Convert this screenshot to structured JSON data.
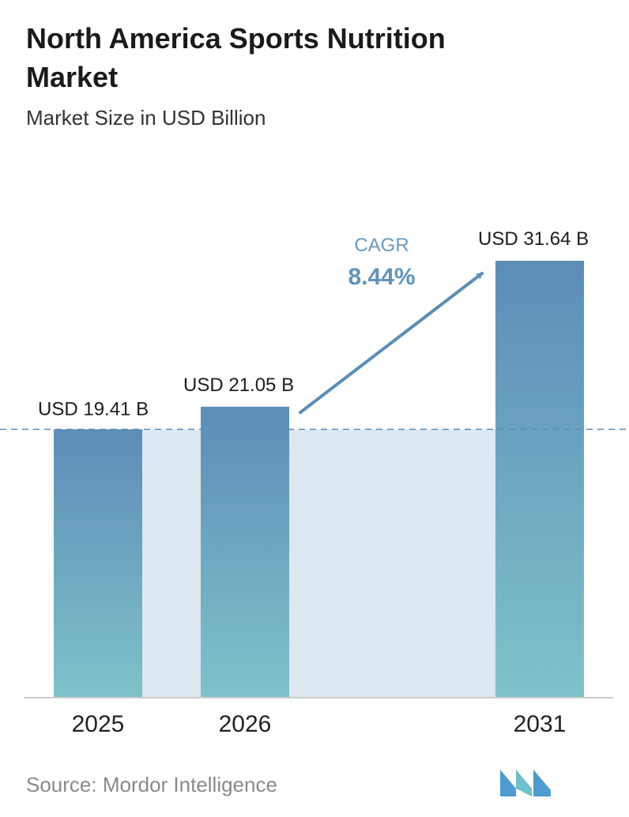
{
  "title": "North America Sports Nutrition Market",
  "subtitle": "Market Size in USD Billion",
  "source": "Source:  Mordor Intelligence",
  "colors": {
    "bar_top": "#5b8db8",
    "bar_bottom": "#7fc2c9",
    "band": "#dde8f0",
    "dashed_line": "#5b8db8",
    "arrow": "#5b8db8",
    "cagr_label": "#6a9ac0",
    "cagr_value": "#5f93bd",
    "axis": "#cccccc",
    "logo": "#4f9bd0"
  },
  "logo_icon": "mordor-intelligence-logo",
  "chart_data": {
    "type": "bar",
    "categories": [
      "2025",
      "2026",
      "2031"
    ],
    "values": [
      19.41,
      21.05,
      31.64
    ],
    "value_labels": [
      "USD 19.41 B",
      "USD 21.05 B",
      "USD 31.64 B"
    ],
    "cagr": {
      "label": "CAGR",
      "value": "8.44%"
    },
    "reference_line": 19.41,
    "grid": false,
    "legend": "none"
  }
}
